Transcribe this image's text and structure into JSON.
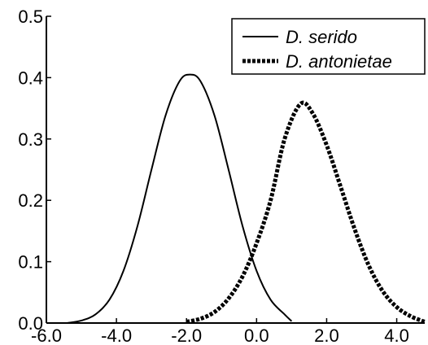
{
  "chart_data": {
    "type": "line",
    "title": "",
    "xlabel": "",
    "ylabel": "",
    "xlim": [
      -6.0,
      4.8
    ],
    "ylim": [
      0.0,
      0.5
    ],
    "xticks": [
      -6.0,
      -4.0,
      -2.0,
      0.0,
      2.0,
      4.0
    ],
    "xtick_labels": [
      "-6.0",
      "-4.0",
      "-2.0",
      "0.0",
      "2.0",
      "4.0"
    ],
    "yticks": [
      0.0,
      0.1,
      0.2,
      0.3,
      0.4,
      0.5
    ],
    "ytick_labels": [
      "0.0",
      "0.1",
      "0.2",
      "0.3",
      "0.4",
      "0.5"
    ],
    "grid": false,
    "legend_position": "top-right",
    "series": [
      {
        "name": "D. serido",
        "style": "solid",
        "color": "#000000",
        "x": [
          -5.4,
          -5.0,
          -4.6,
          -4.2,
          -3.8,
          -3.4,
          -3.0,
          -2.6,
          -2.2,
          -1.9,
          -1.6,
          -1.2,
          -0.8,
          -0.4,
          0.0,
          0.4,
          0.8,
          1.0
        ],
        "y": [
          0.0,
          0.004,
          0.014,
          0.038,
          0.085,
          0.158,
          0.25,
          0.338,
          0.394,
          0.405,
          0.394,
          0.338,
          0.25,
          0.158,
          0.085,
          0.038,
          0.014,
          0.003
        ]
      },
      {
        "name": "D. antonietae",
        "style": "dashed",
        "color": "#000000",
        "x": [
          -2.0,
          -1.6,
          -1.2,
          -0.8,
          -0.4,
          0.0,
          0.4,
          0.8,
          1.25,
          1.6,
          2.0,
          2.4,
          2.8,
          3.2,
          3.6,
          4.0,
          4.4,
          4.8
        ],
        "y": [
          0.002,
          0.007,
          0.018,
          0.04,
          0.076,
          0.13,
          0.2,
          0.3,
          0.357,
          0.342,
          0.29,
          0.222,
          0.153,
          0.094,
          0.052,
          0.026,
          0.011,
          0.002
        ]
      }
    ]
  }
}
